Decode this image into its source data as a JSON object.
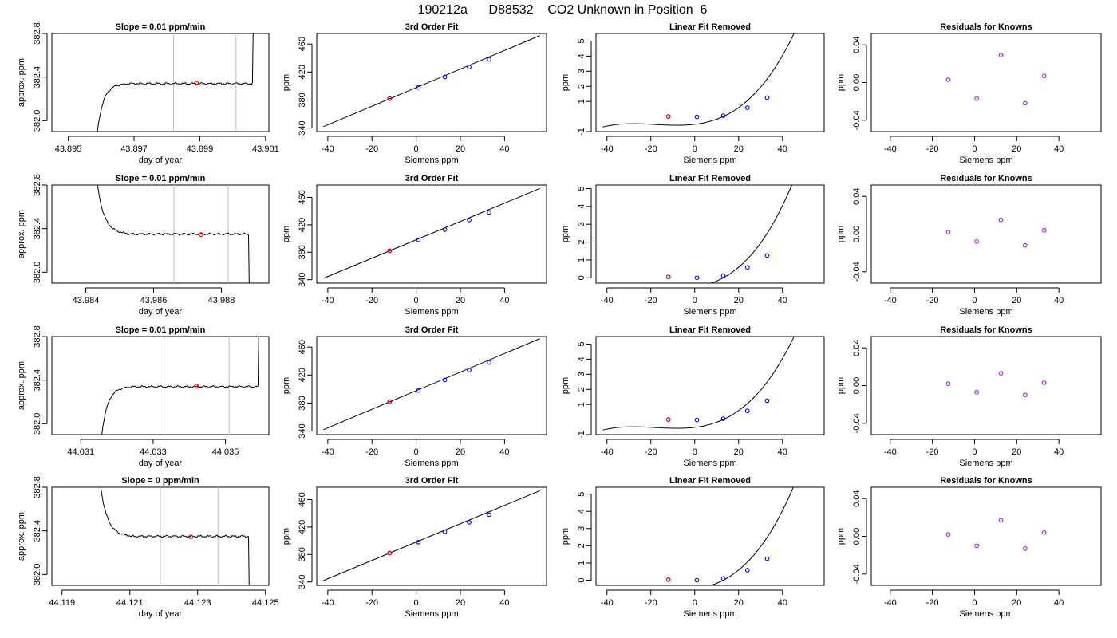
{
  "page_title": "190212a      D88532    CO2 Unknown in Position  6",
  "colors": {
    "known_point": "#0000ff",
    "unknown_point": "#ff0000",
    "residual_point": "#a020f0",
    "marker_line": "#bebebe",
    "line": "#000000"
  },
  "chart_data": [
    {
      "type": "line",
      "row": 0,
      "title": "Slope =  0.01  ppm/min",
      "xlabel": "day of year",
      "ylabel": "approx. ppm",
      "xlim": [
        43.8945,
        43.9011
      ],
      "ylim": [
        381.9,
        382.8
      ],
      "xticks": [
        "43.895",
        "43.897",
        "43.899",
        "43.901"
      ],
      "yticks": [
        "382.0",
        "382.4",
        "382.8"
      ],
      "markers_x": [
        43.8982,
        43.9001
      ],
      "profile": "rise",
      "x_start": 43.8958,
      "x_end": 43.9006,
      "plateau": 382.34,
      "point": {
        "x": 43.8989,
        "y": 382.345
      }
    },
    {
      "type": "scatter",
      "row": 0,
      "title": "3rd Order Fit",
      "xlabel": "Siemens ppm",
      "ylabel": "ppm",
      "xlim": [
        -45,
        59
      ],
      "ylim": [
        335,
        475
      ],
      "xticks": [
        "-40",
        "-20",
        "0",
        "20",
        "40"
      ],
      "yticks": [
        "340",
        "380",
        "420",
        "460"
      ],
      "known": [
        {
          "x": -12,
          "y": 382
        },
        {
          "x": 1,
          "y": 398
        },
        {
          "x": 13,
          "y": 413
        },
        {
          "x": 24,
          "y": 427
        },
        {
          "x": 33,
          "y": 438
        }
      ],
      "unknown": {
        "x": -12,
        "y": 382.3
      },
      "fit": {
        "x0": -42,
        "y0": 342,
        "x1": 56,
        "y1": 472
      }
    },
    {
      "type": "scatter",
      "row": 0,
      "title": "Linear Fit Removed",
      "xlabel": "Siemens ppm",
      "ylabel": "ppm",
      "xlim": [
        -45,
        59
      ],
      "ylim": [
        -1,
        5.5
      ],
      "xticks": [
        "-40",
        "-20",
        "0",
        "20",
        "40"
      ],
      "yticks": [
        "-1",
        "1",
        "2",
        "3",
        "4",
        "5"
      ],
      "known": [
        {
          "x": -12,
          "y": 0
        },
        {
          "x": 1,
          "y": -0.03
        },
        {
          "x": 13,
          "y": 0.05
        },
        {
          "x": 24,
          "y": 0.58
        },
        {
          "x": 33,
          "y": 1.25
        }
      ],
      "unknown": {
        "x": -12,
        "y": 0
      },
      "curve_x": [
        -42,
        56
      ]
    },
    {
      "type": "scatter",
      "row": 0,
      "title": "Residuals for Knowns",
      "xlabel": "Siemens ppm",
      "ylabel": "ppm",
      "xlim": [
        -49,
        60
      ],
      "ylim": [
        -0.052,
        0.052
      ],
      "xticks": [
        "-40",
        "-20",
        "0",
        "20",
        "40"
      ],
      "yticks": [
        "-0.04",
        "0.00",
        "0.04"
      ],
      "residuals": [
        {
          "x": -12.5,
          "y": 0.003
        },
        {
          "x": 1,
          "y": -0.017
        },
        {
          "x": 12.5,
          "y": 0.029
        },
        {
          "x": 24,
          "y": -0.022
        },
        {
          "x": 33,
          "y": 0.007
        }
      ]
    },
    {
      "type": "line",
      "row": 1,
      "title": "Slope =  0.01  ppm/min",
      "xlabel": "day of year",
      "ylabel": "approx. ppm",
      "xlim": [
        43.983,
        43.9894
      ],
      "ylim": [
        381.9,
        382.8
      ],
      "xticks": [
        "43.984",
        "43.986",
        "43.988"
      ],
      "yticks": [
        "382.0",
        "382.4",
        "382.8"
      ],
      "markers_x": [
        43.9866,
        43.9882
      ],
      "profile": "fall",
      "x_start": 43.9842,
      "x_end": 43.9888,
      "plateau": 382.35,
      "point": {
        "x": 43.9874,
        "y": 382.345
      }
    },
    {
      "type": "scatter",
      "row": 1,
      "title": "3rd Order Fit",
      "xlabel": "Siemens ppm",
      "ylabel": "ppm",
      "xlim": [
        -45,
        59
      ],
      "ylim": [
        335,
        478
      ],
      "xticks": [
        "-40",
        "-20",
        "0",
        "20",
        "40"
      ],
      "yticks": [
        "340",
        "380",
        "420",
        "460"
      ],
      "known": [
        {
          "x": -12,
          "y": 382
        },
        {
          "x": 1,
          "y": 398
        },
        {
          "x": 13,
          "y": 413
        },
        {
          "x": 24,
          "y": 427
        },
        {
          "x": 33,
          "y": 438
        }
      ],
      "unknown": {
        "x": -12,
        "y": 382.3
      },
      "fit": {
        "x0": -42,
        "y0": 342,
        "x1": 56,
        "y1": 473
      }
    },
    {
      "type": "scatter",
      "row": 1,
      "title": "Linear Fit Removed",
      "xlabel": "Siemens ppm",
      "ylabel": "ppm",
      "xlim": [
        -45,
        59
      ],
      "ylim": [
        -0.3,
        5.2
      ],
      "xticks": [
        "-40",
        "-20",
        "0",
        "20",
        "40"
      ],
      "yticks": [
        "0",
        "1",
        "2",
        "3",
        "4",
        "5"
      ],
      "known": [
        {
          "x": -12,
          "y": 0.05
        },
        {
          "x": 1,
          "y": 0
        },
        {
          "x": 13,
          "y": 0.12
        },
        {
          "x": 24,
          "y": 0.58
        },
        {
          "x": 33,
          "y": 1.25
        }
      ],
      "unknown": {
        "x": -12,
        "y": 0.05
      },
      "curve_x": [
        -42,
        56
      ]
    },
    {
      "type": "scatter",
      "row": 1,
      "title": "Residuals for Knowns",
      "xlabel": "Siemens ppm",
      "ylabel": "ppm",
      "xlim": [
        -49,
        60
      ],
      "ylim": [
        -0.052,
        0.052
      ],
      "xticks": [
        "-40",
        "-20",
        "0",
        "20",
        "40"
      ],
      "yticks": [
        "-0.04",
        "0.00",
        "0.04"
      ],
      "residuals": [
        {
          "x": -12.5,
          "y": 0.002
        },
        {
          "x": 1,
          "y": -0.008
        },
        {
          "x": 12.5,
          "y": 0.015
        },
        {
          "x": 24,
          "y": -0.012
        },
        {
          "x": 33,
          "y": 0.004
        }
      ]
    },
    {
      "type": "line",
      "row": 2,
      "title": "Slope =  0.01  ppm/min",
      "xlabel": "day of year",
      "ylabel": "approx. ppm",
      "xlim": [
        44.0302,
        44.0362
      ],
      "ylim": [
        381.9,
        382.8
      ],
      "xticks": [
        "44.031",
        "44.033",
        "44.035"
      ],
      "yticks": [
        "382.0",
        "382.4",
        "382.8"
      ],
      "markers_x": [
        44.0333,
        44.0351
      ],
      "profile": "rise",
      "x_start": 44.0315,
      "x_end": 44.0359,
      "plateau": 382.34,
      "point": {
        "x": 44.0342,
        "y": 382.345
      }
    },
    {
      "type": "scatter",
      "row": 2,
      "title": "3rd Order Fit",
      "xlabel": "Siemens ppm",
      "ylabel": "ppm",
      "xlim": [
        -45,
        59
      ],
      "ylim": [
        335,
        475
      ],
      "xticks": [
        "-40",
        "-20",
        "0",
        "20",
        "40"
      ],
      "yticks": [
        "340",
        "380",
        "420",
        "460"
      ],
      "known": [
        {
          "x": -12,
          "y": 382
        },
        {
          "x": 1,
          "y": 398
        },
        {
          "x": 13,
          "y": 413
        },
        {
          "x": 24,
          "y": 427
        },
        {
          "x": 33,
          "y": 438
        }
      ],
      "unknown": {
        "x": -12,
        "y": 382.3
      },
      "fit": {
        "x0": -42,
        "y0": 342,
        "x1": 56,
        "y1": 472
      }
    },
    {
      "type": "scatter",
      "row": 2,
      "title": "Linear Fit Removed",
      "xlabel": "Siemens ppm",
      "ylabel": "ppm",
      "xlim": [
        -45,
        59
      ],
      "ylim": [
        -1,
        5.5
      ],
      "xticks": [
        "-40",
        "-20",
        "0",
        "20",
        "40"
      ],
      "yticks": [
        "-1",
        "1",
        "2",
        "3",
        "4",
        "5"
      ],
      "known": [
        {
          "x": -12,
          "y": 0
        },
        {
          "x": 1,
          "y": -0.03
        },
        {
          "x": 13,
          "y": 0.05
        },
        {
          "x": 24,
          "y": 0.58
        },
        {
          "x": 33,
          "y": 1.25
        }
      ],
      "unknown": {
        "x": -12,
        "y": 0
      },
      "curve_x": [
        -42,
        56
      ]
    },
    {
      "type": "scatter",
      "row": 2,
      "title": "Residuals for Knowns",
      "xlabel": "Siemens ppm",
      "ylabel": "ppm",
      "xlim": [
        -49,
        60
      ],
      "ylim": [
        -0.052,
        0.052
      ],
      "xticks": [
        "-40",
        "-20",
        "0",
        "20",
        "40"
      ],
      "yticks": [
        "-0.04",
        "0.00",
        "0.04"
      ],
      "residuals": [
        {
          "x": -12.5,
          "y": 0.002
        },
        {
          "x": 1,
          "y": -0.007
        },
        {
          "x": 12.5,
          "y": 0.013
        },
        {
          "x": 24,
          "y": -0.01
        },
        {
          "x": 33,
          "y": 0.003
        }
      ]
    },
    {
      "type": "line",
      "row": 3,
      "title": "Slope =  0  ppm/min",
      "xlabel": "day of year",
      "ylabel": "approx. ppm",
      "xlim": [
        44.1187,
        44.1251
      ],
      "ylim": [
        381.9,
        382.8
      ],
      "xticks": [
        "44.119",
        "44.121",
        "44.123",
        "44.125"
      ],
      "yticks": [
        "382.0",
        "382.4",
        "382.8"
      ],
      "markers_x": [
        44.1219,
        44.1236
      ],
      "profile": "fall",
      "x_start": 44.12,
      "x_end": 44.1245,
      "plateau": 382.35,
      "point": {
        "x": 44.1228,
        "y": 382.345
      }
    },
    {
      "type": "scatter",
      "row": 3,
      "title": "3rd Order Fit",
      "xlabel": "Siemens ppm",
      "ylabel": "ppm",
      "xlim": [
        -45,
        59
      ],
      "ylim": [
        335,
        478
      ],
      "xticks": [
        "-40",
        "-20",
        "0",
        "20",
        "40"
      ],
      "yticks": [
        "340",
        "380",
        "420",
        "460"
      ],
      "known": [
        {
          "x": -12,
          "y": 382
        },
        {
          "x": 1,
          "y": 398
        },
        {
          "x": 13,
          "y": 413
        },
        {
          "x": 24,
          "y": 427
        },
        {
          "x": 33,
          "y": 438
        }
      ],
      "unknown": {
        "x": -12,
        "y": 382.3
      },
      "fit": {
        "x0": -42,
        "y0": 342,
        "x1": 56,
        "y1": 473
      }
    },
    {
      "type": "scatter",
      "row": 3,
      "title": "Linear Fit Removed",
      "xlabel": "Siemens ppm",
      "ylabel": "ppm",
      "xlim": [
        -45,
        59
      ],
      "ylim": [
        -0.3,
        5.4
      ],
      "xticks": [
        "-40",
        "-20",
        "0",
        "20",
        "40"
      ],
      "yticks": [
        "0",
        "1",
        "2",
        "3",
        "4",
        "5"
      ],
      "known": [
        {
          "x": -12,
          "y": 0.03
        },
        {
          "x": 1,
          "y": 0
        },
        {
          "x": 13,
          "y": 0.1
        },
        {
          "x": 24,
          "y": 0.58
        },
        {
          "x": 33,
          "y": 1.25
        }
      ],
      "unknown": {
        "x": -12,
        "y": 0.03
      },
      "curve_x": [
        -42,
        56
      ]
    },
    {
      "type": "scatter",
      "row": 3,
      "title": "Residuals for Knowns",
      "xlabel": "Siemens ppm",
      "ylabel": "ppm",
      "xlim": [
        -49,
        60
      ],
      "ylim": [
        -0.052,
        0.052
      ],
      "xticks": [
        "-40",
        "-20",
        "0",
        "20",
        "40"
      ],
      "yticks": [
        "-0.04",
        "0.00",
        "0.04"
      ],
      "residuals": [
        {
          "x": -12.5,
          "y": 0.002
        },
        {
          "x": 1,
          "y": -0.01
        },
        {
          "x": 12.5,
          "y": 0.017
        },
        {
          "x": 24,
          "y": -0.013
        },
        {
          "x": 33,
          "y": 0.004
        }
      ]
    }
  ]
}
